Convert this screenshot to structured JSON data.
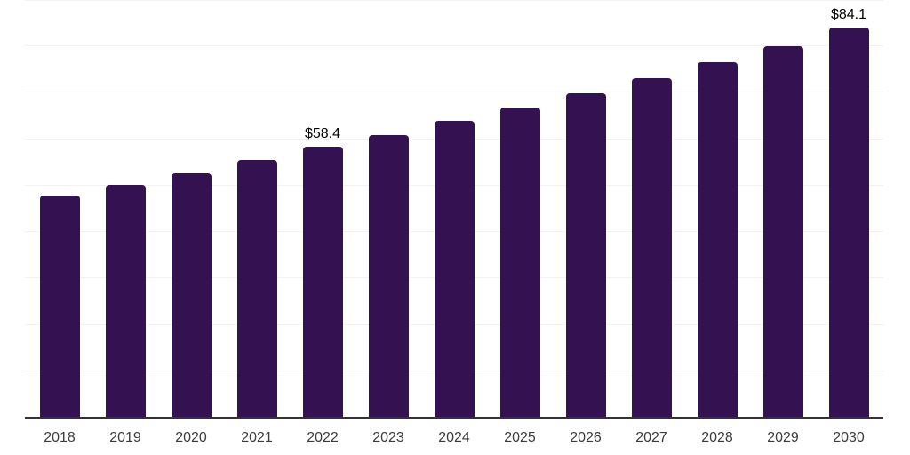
{
  "chart_data": {
    "type": "bar",
    "title": "",
    "xlabel": "",
    "ylabel": "",
    "categories": [
      "2018",
      "2019",
      "2020",
      "2021",
      "2022",
      "2023",
      "2024",
      "2025",
      "2026",
      "2027",
      "2028",
      "2029",
      "2030"
    ],
    "values": [
      47.8,
      50.1,
      52.6,
      55.6,
      58.4,
      60.9,
      63.9,
      66.8,
      69.9,
      73.1,
      76.6,
      80.1,
      84.1
    ],
    "data_labels": {
      "2022": "$58.4",
      "2030": "$84.1"
    },
    "ylim": [
      0,
      90
    ],
    "gridline_step": 10,
    "grid": true,
    "legend": "none",
    "bar_color": "#341150",
    "axis_line_color": "#333333",
    "gridline_color": "#f2f2f2",
    "tick_label_color": "#3b3b3b",
    "data_label_color": "#000000"
  }
}
